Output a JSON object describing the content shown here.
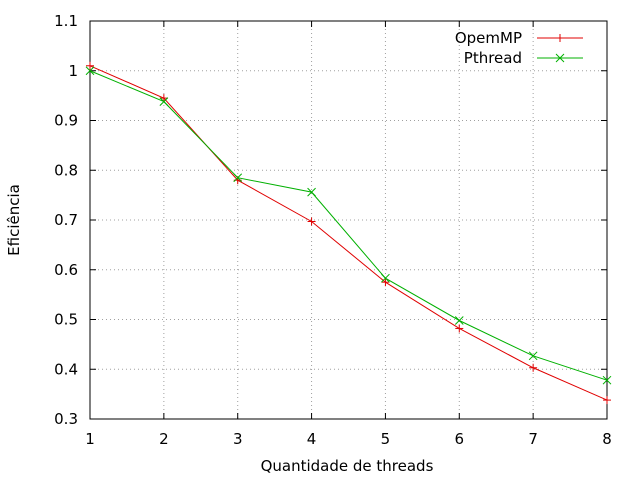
{
  "chart_data": {
    "type": "line",
    "title": "",
    "xlabel": "Quantidade de threads",
    "ylabel": "Eficiência",
    "x": [
      1,
      2,
      3,
      4,
      5,
      6,
      7,
      8
    ],
    "xlim": [
      1,
      8
    ],
    "ylim": [
      0.3,
      1.1
    ],
    "xticks": [
      "1",
      "2",
      "3",
      "4",
      "5",
      "6",
      "7",
      "8"
    ],
    "yticks": [
      "0.3",
      "0.4",
      "0.5",
      "0.6",
      "0.7",
      "0.8",
      "0.9",
      "1",
      "1.1"
    ],
    "grid": true,
    "legend_position": "top-right",
    "series": [
      {
        "name": "OpemMP",
        "color": "#e00000",
        "marker": "plus",
        "values": [
          1.01,
          0.945,
          0.78,
          0.697,
          0.575,
          0.482,
          0.403,
          0.338
        ]
      },
      {
        "name": "Pthread",
        "color": "#00b000",
        "marker": "cross",
        "values": [
          1.0,
          0.938,
          0.785,
          0.756,
          0.583,
          0.498,
          0.427,
          0.378
        ]
      }
    ]
  }
}
